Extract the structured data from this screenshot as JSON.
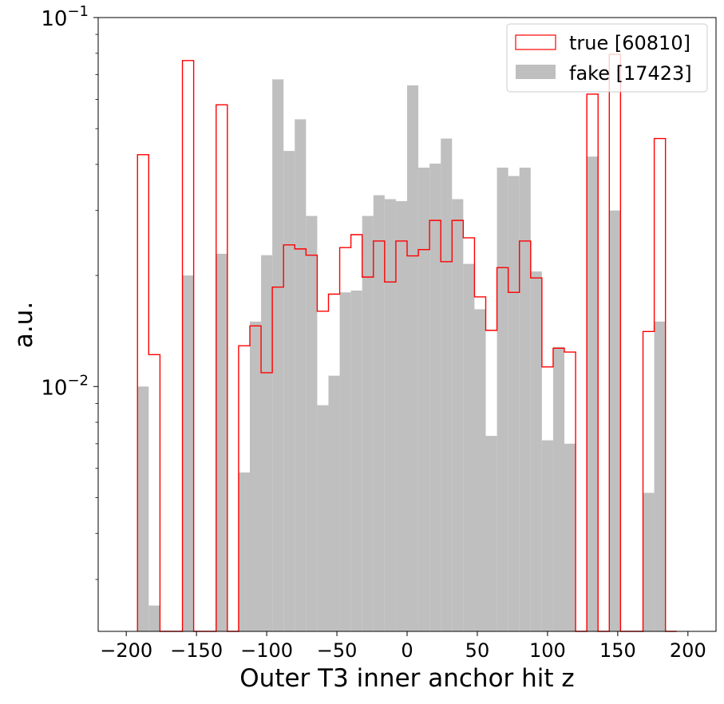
{
  "chart_data": {
    "type": "histogram",
    "xlabel": "Outer T3 inner anchor hit z",
    "ylabel": "a.u.",
    "y_scale": "log",
    "xlim": [
      -220,
      220
    ],
    "ylim": [
      0.00217,
      0.1
    ],
    "x_ticks": [
      -200,
      -150,
      -100,
      -50,
      0,
      50,
      100,
      150,
      200
    ],
    "x_tick_labels": [
      "−200",
      "−150",
      "−100",
      "−50",
      "0",
      "50",
      "100",
      "150",
      "200"
    ],
    "y_ticks": [
      {
        "value": 0.1,
        "base": "10",
        "exp": "−1"
      },
      {
        "value": 0.01,
        "base": "10",
        "exp": "−2"
      }
    ],
    "grid": false,
    "legend_position": "top-right",
    "bin_edges": [
      -192,
      -184,
      -176,
      -168,
      -160,
      -152,
      -144,
      -136,
      -128,
      -120,
      -112,
      -104,
      -96,
      -88,
      -80,
      -72,
      -64,
      -56,
      -48,
      -40,
      -32,
      -24,
      -16,
      -8,
      0,
      8,
      16,
      24,
      32,
      40,
      48,
      56,
      64,
      72,
      80,
      88,
      96,
      104,
      112,
      120,
      128,
      136,
      144,
      152,
      160,
      168,
      176,
      184,
      192
    ],
    "series": [
      {
        "name": "true [60810]",
        "style": "step",
        "color": "#ff0000",
        "values": [
          0.0425,
          0.0122,
          0,
          0,
          0.0765,
          0,
          0,
          0.058,
          0,
          0.0129,
          0.0146,
          0.0109,
          0.0186,
          0.0242,
          0.0236,
          0.0227,
          0.016,
          0.0178,
          0.0238,
          0.0258,
          0.0198,
          0.0248,
          0.0192,
          0.0248,
          0.0226,
          0.0235,
          0.0282,
          0.0218,
          0.0282,
          0.0253,
          0.0175,
          0.0142,
          0.021,
          0.018,
          0.0248,
          0.0197,
          0.0113,
          0.0127,
          0.0124,
          0,
          0.062,
          0,
          0.0795,
          0,
          0,
          0.0141,
          0.047,
          0
        ]
      },
      {
        "name": "fake [17423]",
        "style": "filled",
        "color": "#bfbfbf",
        "values": [
          0.01,
          0.00255,
          0,
          0,
          0.02,
          0,
          0,
          0.0229,
          0,
          0.00585,
          0.015,
          0.0227,
          0.068,
          0.0435,
          0.053,
          0.029,
          0.0089,
          0.0107,
          0.018,
          0.0182,
          0.029,
          0.033,
          0.0322,
          0.0318,
          0.0655,
          0.0392,
          0.0402,
          0.047,
          0.0322,
          0.0215,
          0.0162,
          0.00735,
          0.0392,
          0.0372,
          0.0392,
          0.0205,
          0.00715,
          0.0128,
          0.007,
          0,
          0.042,
          0,
          0.03,
          0,
          0,
          0.00515,
          0.015,
          0
        ]
      }
    ]
  }
}
